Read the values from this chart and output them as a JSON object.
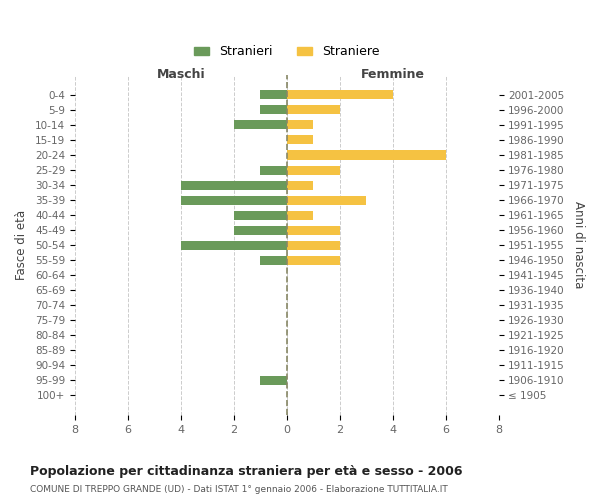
{
  "age_groups": [
    "100+",
    "95-99",
    "90-94",
    "85-89",
    "80-84",
    "75-79",
    "70-74",
    "65-69",
    "60-64",
    "55-59",
    "50-54",
    "45-49",
    "40-44",
    "35-39",
    "30-34",
    "25-29",
    "20-24",
    "15-19",
    "10-14",
    "5-9",
    "0-4"
  ],
  "birth_years": [
    "≤ 1905",
    "1906-1910",
    "1911-1915",
    "1916-1920",
    "1921-1925",
    "1926-1930",
    "1931-1935",
    "1936-1940",
    "1941-1945",
    "1946-1950",
    "1951-1955",
    "1956-1960",
    "1961-1965",
    "1966-1970",
    "1971-1975",
    "1976-1980",
    "1981-1985",
    "1986-1990",
    "1991-1995",
    "1996-2000",
    "2001-2005"
  ],
  "maschi": [
    0,
    1,
    0,
    0,
    0,
    0,
    0,
    0,
    0,
    1,
    4,
    2,
    2,
    4,
    4,
    1,
    0,
    0,
    2,
    1,
    1
  ],
  "femmine": [
    0,
    0,
    0,
    0,
    0,
    0,
    0,
    0,
    0,
    2,
    2,
    2,
    1,
    3,
    1,
    2,
    6,
    1,
    1,
    2,
    4
  ],
  "color_maschi": "#6a9a5a",
  "color_femmine": "#f5c242",
  "title": "Popolazione per cittadinanza straniera per età e sesso - 2006",
  "subtitle": "COMUNE DI TREPPO GRANDE (UD) - Dati ISTAT 1° gennaio 2006 - Elaborazione TUTTITALIA.IT",
  "xlabel_left": "Maschi",
  "xlabel_right": "Femmine",
  "ylabel_left": "Fasce di età",
  "ylabel_right": "Anni di nascita",
  "legend_maschi": "Stranieri",
  "legend_femmine": "Straniere",
  "xlim": 8,
  "background_color": "#ffffff",
  "grid_color": "#cccccc"
}
